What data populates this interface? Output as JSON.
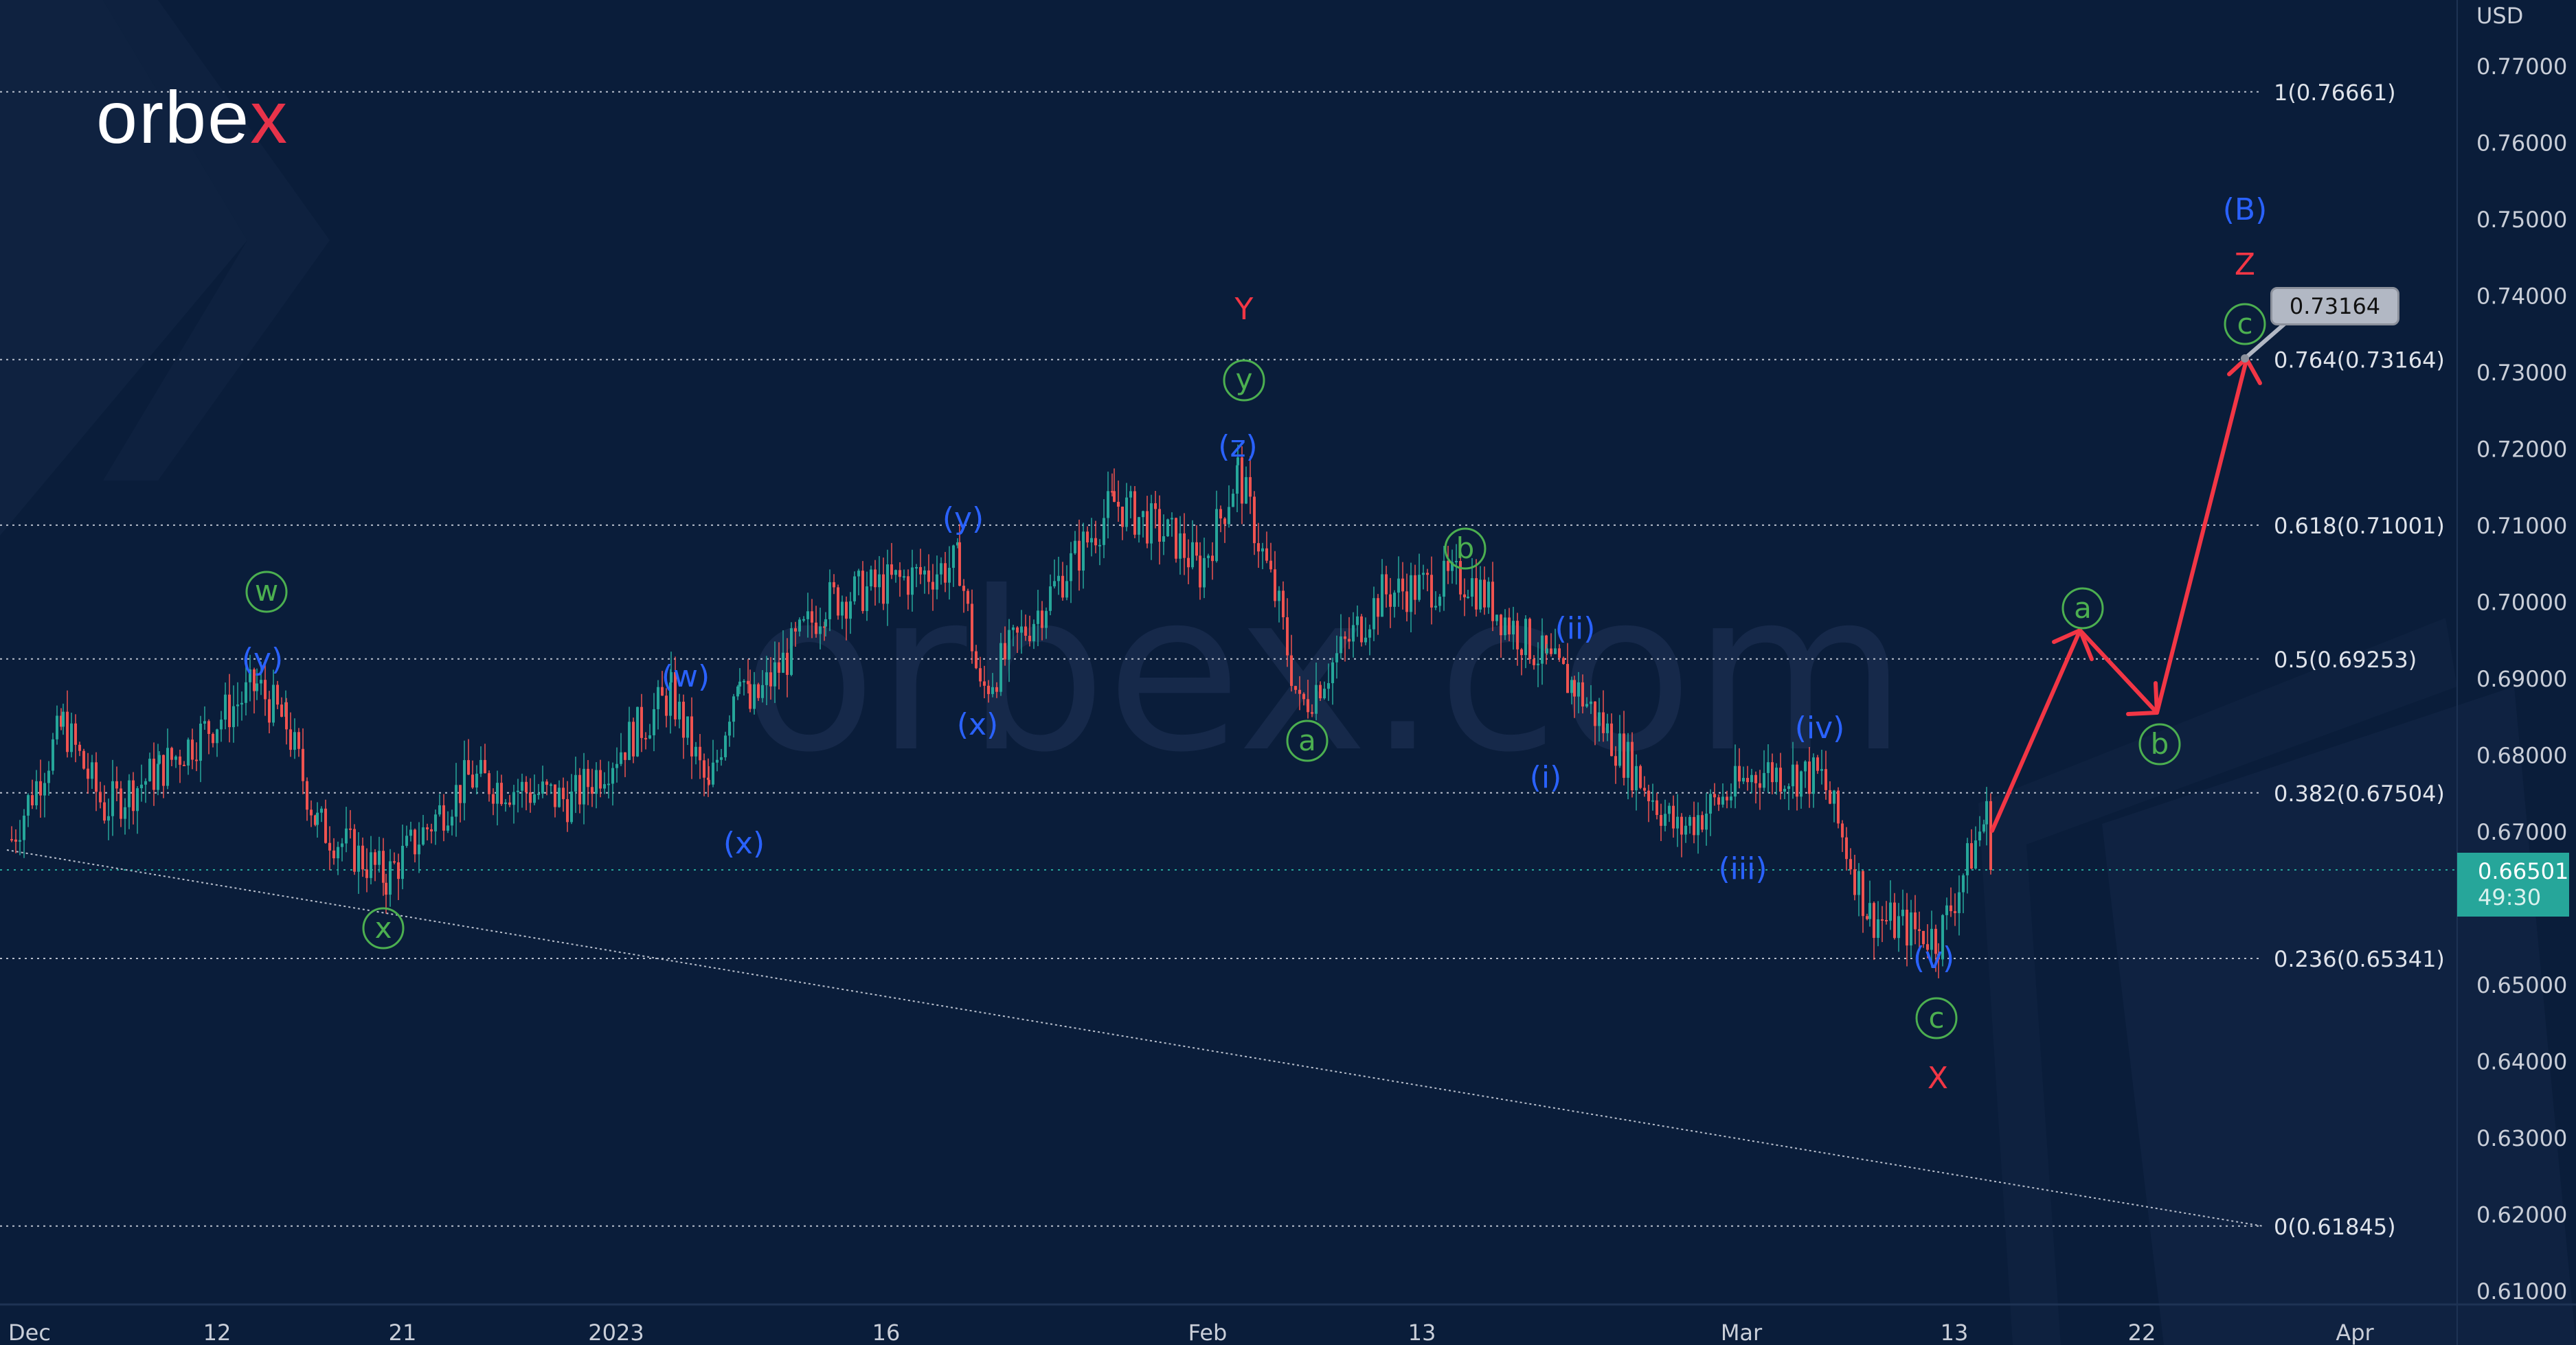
{
  "brand": {
    "logo_text_main": "orbe",
    "logo_text_x": "x",
    "watermark": "orbex.com"
  },
  "colors": {
    "background": "#0a1d3a",
    "candle_up": "#26a69a",
    "candle_down": "#ef5350",
    "wave_blue": "#2a62ff",
    "wave_green": "#4caf50",
    "wave_red": "#f23645",
    "projection_arrow": "#f23645",
    "price_badge": "#26a69a"
  },
  "price_axis": {
    "currency": "USD",
    "ticks": [
      "0.77000",
      "0.76000",
      "0.75000",
      "0.74000",
      "0.73000",
      "0.72000",
      "0.71000",
      "0.70000",
      "0.69000",
      "0.68000",
      "0.67000",
      "0.65000",
      "0.64000",
      "0.63000",
      "0.62000",
      "0.61000"
    ],
    "current_price": "0.66501",
    "countdown": "49:30"
  },
  "time_axis": {
    "ticks": [
      "Dec",
      "12",
      "21",
      "2023",
      "16",
      "Feb",
      "13",
      "Mar",
      "13",
      "22",
      "Apr"
    ]
  },
  "fib_levels": [
    {
      "label": "1(0.76661)"
    },
    {
      "label": "0.764(0.73164)"
    },
    {
      "label": "0.618(0.71001)"
    },
    {
      "label": "0.5(0.69253)"
    },
    {
      "label": "0.382(0.67504)"
    },
    {
      "label": "0.236(0.65341)"
    },
    {
      "label": "0(0.61845)"
    }
  ],
  "target": {
    "price_label": "0.73164"
  },
  "wave_labels": {
    "w_circ": "w",
    "y_paren_1": "(y)",
    "x_circ": "x",
    "w_paren": "(w)",
    "x_paren_1": "(x)",
    "y_paren_2": "(y)",
    "x_paren_2": "(x)",
    "Y": "Y",
    "y_circ": "y",
    "z_paren": "(z)",
    "a_circ_1": "a",
    "b_circ_1": "b",
    "i_paren": "(i)",
    "ii_paren": "(ii)",
    "iii_paren": "(iii)",
    "iv_paren": "(iv)",
    "v_paren": "(v)",
    "c_circ_1": "c",
    "X": "X",
    "a_circ_2": "a",
    "b_circ_2": "b",
    "c_circ_2": "c",
    "Z": "Z",
    "B_paren": "(B)"
  },
  "chart_data": {
    "type": "line",
    "title": "",
    "instrument_quote": "USD",
    "xlabel": "",
    "ylabel": "USD",
    "ylim": [
      0.605,
      0.775
    ],
    "grid": false,
    "x_ticks": [
      "Dec",
      "12",
      "21",
      "2023",
      "16",
      "Feb",
      "13",
      "Mar",
      "13",
      "22",
      "Apr"
    ],
    "y_ticks": [
      0.77,
      0.76,
      0.75,
      0.74,
      0.73,
      0.72,
      0.71,
      0.7,
      0.69,
      0.68,
      0.67,
      0.65,
      0.64,
      0.63,
      0.62,
      0.61
    ],
    "series": [
      {
        "name": "Price (approx. swing points)",
        "x": [
          "Dec 1",
          "Dec 3",
          "Dec 7",
          "Dec 9",
          "Dec 13",
          "Dec 14",
          "Dec 16",
          "Dec 20",
          "Dec 23",
          "Dec 28",
          "Jan 3",
          "Jan 5",
          "Jan 9",
          "Jan 10",
          "Jan 13",
          "Jan 18",
          "Jan 19",
          "Jan 24",
          "Jan 27",
          "Jan 31",
          "Feb 2",
          "Feb 3",
          "Feb 6",
          "Feb 9",
          "Feb 14",
          "Feb 16",
          "Feb 22",
          "Feb 27",
          "Mar 1",
          "Mar 3",
          "Mar 7",
          "Mar 10",
          "Mar 13",
          "Mar 14",
          "Mar 15"
        ],
        "values": [
          0.669,
          0.684,
          0.673,
          0.678,
          0.689,
          0.684,
          0.671,
          0.664,
          0.677,
          0.674,
          0.688,
          0.675,
          0.692,
          0.686,
          0.7,
          0.705,
          0.688,
          0.713,
          0.708,
          0.704,
          0.717,
          0.699,
          0.686,
          0.701,
          0.703,
          0.692,
          0.689,
          0.67,
          0.678,
          0.677,
          0.659,
          0.656,
          0.67,
          0.672,
          0.665
        ]
      },
      {
        "name": "Projected path",
        "x": [
          "Mar 15",
          "Mar 20",
          "Mar 22",
          "Mar 27"
        ],
        "values": [
          0.665,
          0.696,
          0.685,
          0.7316
        ]
      }
    ],
    "horizontal_levels": [
      {
        "name": "Fib 1",
        "value": 0.76661
      },
      {
        "name": "Fib 0.764",
        "value": 0.73164
      },
      {
        "name": "Fib 0.618",
        "value": 0.71001
      },
      {
        "name": "Fib 0.5",
        "value": 0.69253
      },
      {
        "name": "Fib 0.382",
        "value": 0.67504
      },
      {
        "name": "Fib 0.236",
        "value": 0.65341
      },
      {
        "name": "Fib 0",
        "value": 0.61845
      },
      {
        "name": "Current price",
        "value": 0.66501
      }
    ],
    "annotations": [
      "w",
      "(y)",
      "x",
      "(w)",
      "(x)",
      "(y)",
      "(x)",
      "Y",
      "y",
      "(z)",
      "a",
      "b",
      "(i)",
      "(ii)",
      "(iii)",
      "(iv)",
      "(v)",
      "c",
      "X",
      "a",
      "b",
      "c",
      "Z",
      "(B)",
      "0.73164"
    ]
  }
}
